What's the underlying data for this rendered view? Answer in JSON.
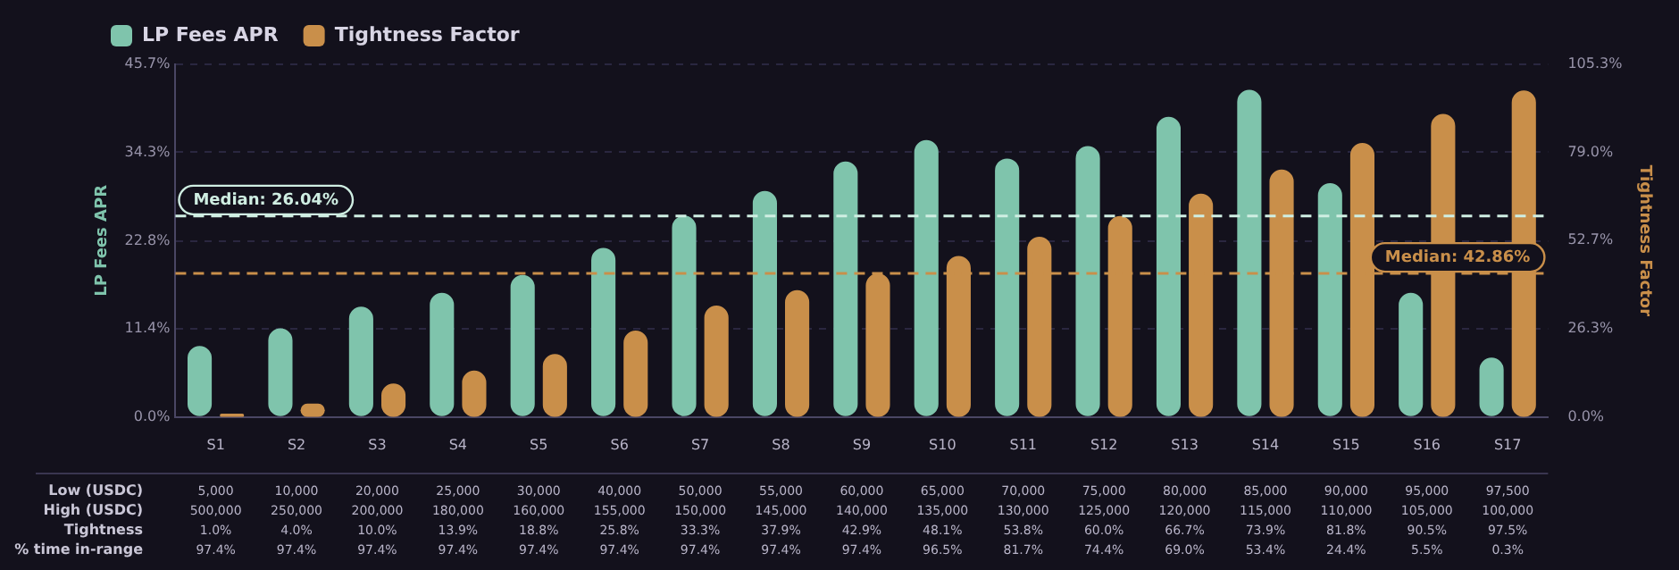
{
  "chart_data": {
    "type": "bar",
    "xlabel": null,
    "ylabel": "LP Fees APR",
    "y2label": "Tightness Factor",
    "categories": [
      "S1",
      "S2",
      "S3",
      "S4",
      "S5",
      "S6",
      "S7",
      "S8",
      "S9",
      "S10",
      "S11",
      "S12",
      "S13",
      "S14",
      "S15",
      "S16",
      "S17"
    ],
    "series": [
      {
        "name": "LP Fees APR",
        "color": "#7fc4ac",
        "values": [
          9.2,
          11.5,
          14.3,
          16.1,
          18.4,
          21.9,
          26.1,
          29.3,
          33.1,
          35.9,
          33.5,
          35.1,
          38.9,
          42.4,
          30.3,
          16.1,
          7.7
        ]
      },
      {
        "name": "Tightness Factor",
        "color": "#c98f4a",
        "axis": "y2",
        "values": [
          1.0,
          4.0,
          10.0,
          13.9,
          18.8,
          25.8,
          33.3,
          37.9,
          42.9,
          48.1,
          53.8,
          60.0,
          66.7,
          73.9,
          81.8,
          90.5,
          97.5
        ],
        "value_labels": [
          "1.0%",
          "4.0%",
          "10.0%",
          "13.9%",
          "18.8%",
          "25.8%",
          "33.3%",
          "37.9%",
          "42.9%",
          "48.1%",
          "53.8%",
          "60.0%",
          "66.7%",
          "73.9%",
          "81.8%",
          "90.5%",
          "97.5%"
        ]
      }
    ],
    "ylim": [
      0,
      45.7
    ],
    "yticks": [
      {
        "value": 0,
        "label": "0.0%"
      },
      {
        "value": 11.4,
        "label": "11.4%"
      },
      {
        "value": 22.8,
        "label": "22.8%"
      },
      {
        "value": 34.3,
        "label": "34.3%"
      },
      {
        "value": 45.7,
        "label": "45.7%"
      }
    ],
    "y2lim": [
      0,
      105.3
    ],
    "y2ticks": [
      {
        "value": 0,
        "label": "0.0%"
      },
      {
        "value": 26.3,
        "label": "26.3%"
      },
      {
        "value": 52.7,
        "label": "52.7%"
      },
      {
        "value": 79.0,
        "label": "79.0%"
      },
      {
        "value": 105.3,
        "label": "105.3%"
      }
    ],
    "ref_lines": [
      {
        "axis": "y",
        "value": 26.04,
        "label": "Median: 26.04%",
        "color": "#cfeee2",
        "line_style": "dashed"
      },
      {
        "axis": "y2",
        "value": 42.86,
        "label": "Median: 42.86%",
        "color": "#c98f4a",
        "line_style": "dashed"
      }
    ],
    "grid": "y",
    "legend": "top left",
    "annotations": [
      "Low (USDC)",
      "High (USDC)",
      "Tightness",
      "% time in-range",
      "5,000",
      "10,000",
      "20,000",
      "25,000",
      "30,000",
      "40,000",
      "50,000",
      "55,000",
      "60,000",
      "65,000",
      "70,000",
      "75,000",
      "80,000",
      "85,000",
      "90,000",
      "95,000",
      "97,500",
      "500,000",
      "250,000",
      "200,000",
      "180,000",
      "160,000",
      "155,000",
      "150,000",
      "145,000",
      "140,000",
      "135,000",
      "130,000",
      "125,000",
      "120,000",
      "115,000",
      "110,000",
      "105,000",
      "100,000",
      "97.4%",
      "97.4%",
      "97.4%",
      "97.4%",
      "97.4%",
      "97.4%",
      "97.4%",
      "97.4%",
      "97.4%",
      "96.5%",
      "81.7%",
      "74.4%",
      "69.0%",
      "53.4%",
      "24.4%",
      "5.5%",
      "0.3%"
    ]
  }
}
